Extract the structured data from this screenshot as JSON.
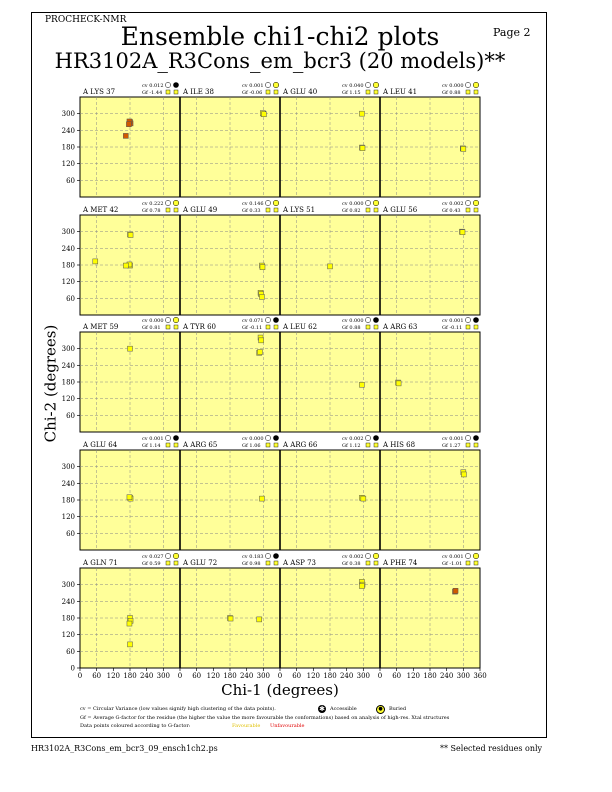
{
  "header": {
    "program": "PROCHECK-NMR",
    "page_label": "Page  2",
    "title": "Ensemble chi1-chi2 plots",
    "subtitle": "HR3102A_R3Cons_em_bcr3 (20 models)**"
  },
  "chart_data": {
    "type": "scatter",
    "xlabel": "Chi-1 (degrees)",
    "ylabel": "Chi-2 (degrees)",
    "xlim": [
      0,
      360
    ],
    "ylim": [
      0,
      360
    ],
    "xticks": [
      0,
      60,
      120,
      180,
      240,
      300,
      360
    ],
    "yticks": [
      0,
      60,
      120,
      180,
      240,
      300
    ],
    "grid": true,
    "background_color": "#ffff99",
    "favourable_color": "#ffff00",
    "unfavourable_color": "#d05a00",
    "panels": [
      {
        "label": "A LYS 37",
        "cv": "cv 0.012",
        "gf": "Gf -1.44",
        "status": "accessible",
        "points": [
          [
            180,
            270
          ],
          [
            182,
            265
          ],
          [
            178,
            272
          ],
          [
            176,
            262
          ],
          [
            165,
            220
          ]
        ]
      },
      {
        "label": "A ILE 38",
        "cv": "cv 0.001",
        "gf": "Gf -0.06",
        "status": "buried",
        "points": [
          [
            300,
            300
          ],
          [
            298,
            302
          ],
          [
            302,
            298
          ]
        ]
      },
      {
        "label": "A GLU 40",
        "cv": "cv 0.040",
        "gf": "Gf 1.15",
        "status": "buried",
        "points": [
          [
            295,
            300
          ],
          [
            295,
            178
          ],
          [
            297,
            176
          ]
        ]
      },
      {
        "label": "A LEU 41",
        "cv": "cv 0.000",
        "gf": "Gf 0.88",
        "status": "buried",
        "points": [
          [
            298,
            175
          ],
          [
            300,
            173
          ]
        ]
      },
      {
        "label": "A MET 42",
        "cv": "cv 0.222",
        "gf": "Gf 0.78",
        "status": "buried",
        "points": [
          [
            180,
            290
          ],
          [
            182,
            288
          ],
          [
            180,
            178
          ],
          [
            178,
            182
          ],
          [
            165,
            178
          ],
          [
            55,
            193
          ]
        ]
      },
      {
        "label": "A GLU 49",
        "cv": "cv 0.146",
        "gf": "Gf 0.33",
        "status": "buried",
        "points": [
          [
            295,
            178
          ],
          [
            297,
            172
          ],
          [
            290,
            80
          ],
          [
            292,
            75
          ],
          [
            295,
            65
          ]
        ]
      },
      {
        "label": "A LYS 51",
        "cv": "cv 0.000",
        "gf": "Gf 0.82",
        "status": "buried",
        "points": [
          [
            180,
            175
          ]
        ]
      },
      {
        "label": "A GLU 56",
        "cv": "cv 0.002",
        "gf": "Gf 0.43",
        "status": "buried",
        "points": [
          [
            295,
            300
          ],
          [
            297,
            298
          ]
        ]
      },
      {
        "label": "A MET 59",
        "cv": "cv 0.000",
        "gf": "Gf 0.81",
        "status": "buried",
        "points": [
          [
            180,
            300
          ]
        ]
      },
      {
        "label": "A TYR 60",
        "cv": "cv 0.071",
        "gf": "Gf -0.11",
        "status": "accessible",
        "points": [
          [
            285,
            285
          ],
          [
            290,
            340
          ],
          [
            292,
            330
          ],
          [
            288,
            288
          ]
        ]
      },
      {
        "label": "A LEU 62",
        "cv": "cv 0.000",
        "gf": "Gf 0.88",
        "status": "accessible",
        "points": [
          [
            295,
            170
          ]
        ]
      },
      {
        "label": "A ARG 63",
        "cv": "cv 0.001",
        "gf": "Gf -0.11",
        "status": "accessible",
        "points": [
          [
            65,
            178
          ],
          [
            67,
            175
          ]
        ]
      },
      {
        "label": "A GLU 64",
        "cv": "cv 0.001",
        "gf": "Gf 1.14",
        "status": "accessible",
        "points": [
          [
            180,
            188
          ],
          [
            182,
            185
          ],
          [
            178,
            190
          ]
        ]
      },
      {
        "label": "A ARG 65",
        "cv": "cv 0.000",
        "gf": "Gf 1.06",
        "status": "accessible",
        "points": [
          [
            295,
            185
          ]
        ]
      },
      {
        "label": "A ARG 66",
        "cv": "cv 0.002",
        "gf": "Gf 1.12",
        "status": "accessible",
        "points": [
          [
            295,
            188
          ],
          [
            300,
            185
          ]
        ]
      },
      {
        "label": "A HIS 68",
        "cv": "cv 0.001",
        "gf": "Gf 1.27",
        "status": "accessible",
        "points": [
          [
            300,
            280
          ],
          [
            302,
            272
          ]
        ]
      },
      {
        "label": "A GLN 71",
        "cv": "cv 0.027",
        "gf": "Gf 0.59",
        "status": "buried",
        "points": [
          [
            180,
            180
          ],
          [
            182,
            170
          ],
          [
            178,
            160
          ],
          [
            180,
            85
          ]
        ]
      },
      {
        "label": "A GLU 72",
        "cv": "cv 0.183",
        "gf": "Gf 0.98",
        "status": "accessible",
        "points": [
          [
            180,
            180
          ],
          [
            182,
            178
          ],
          [
            285,
            175
          ]
        ]
      },
      {
        "label": "A ASP 73",
        "cv": "cv 0.002",
        "gf": "Gf 0.38",
        "status": "buried",
        "points": [
          [
            295,
            310
          ],
          [
            297,
            300
          ],
          [
            295,
            295
          ]
        ]
      },
      {
        "label": "A PHE 74",
        "cv": "cv 0.001",
        "gf": "Gf -1.01",
        "status": "buried",
        "points": [
          [
            270,
            275
          ],
          [
            272,
            278
          ]
        ]
      }
    ]
  },
  "legend": {
    "cv_text": "cv = Circular Variance (low values signify high clustering of the data points).",
    "accessible_label": "Accessible",
    "buried_label": "Buried",
    "gf_text": "Gf = Average G-factor for the residue (the higher the value the more favourable the conformations) based on analysis of high-res. Xtal structures",
    "points_text": "Data points coloured according to G-factor:",
    "favourable_label": "Favourable",
    "unfavourable_label": "Unfavourable"
  },
  "footer": {
    "filename": "HR3102A_R3Cons_em_bcr3_09_ensch1ch2.ps",
    "note": "** Selected residues only"
  }
}
